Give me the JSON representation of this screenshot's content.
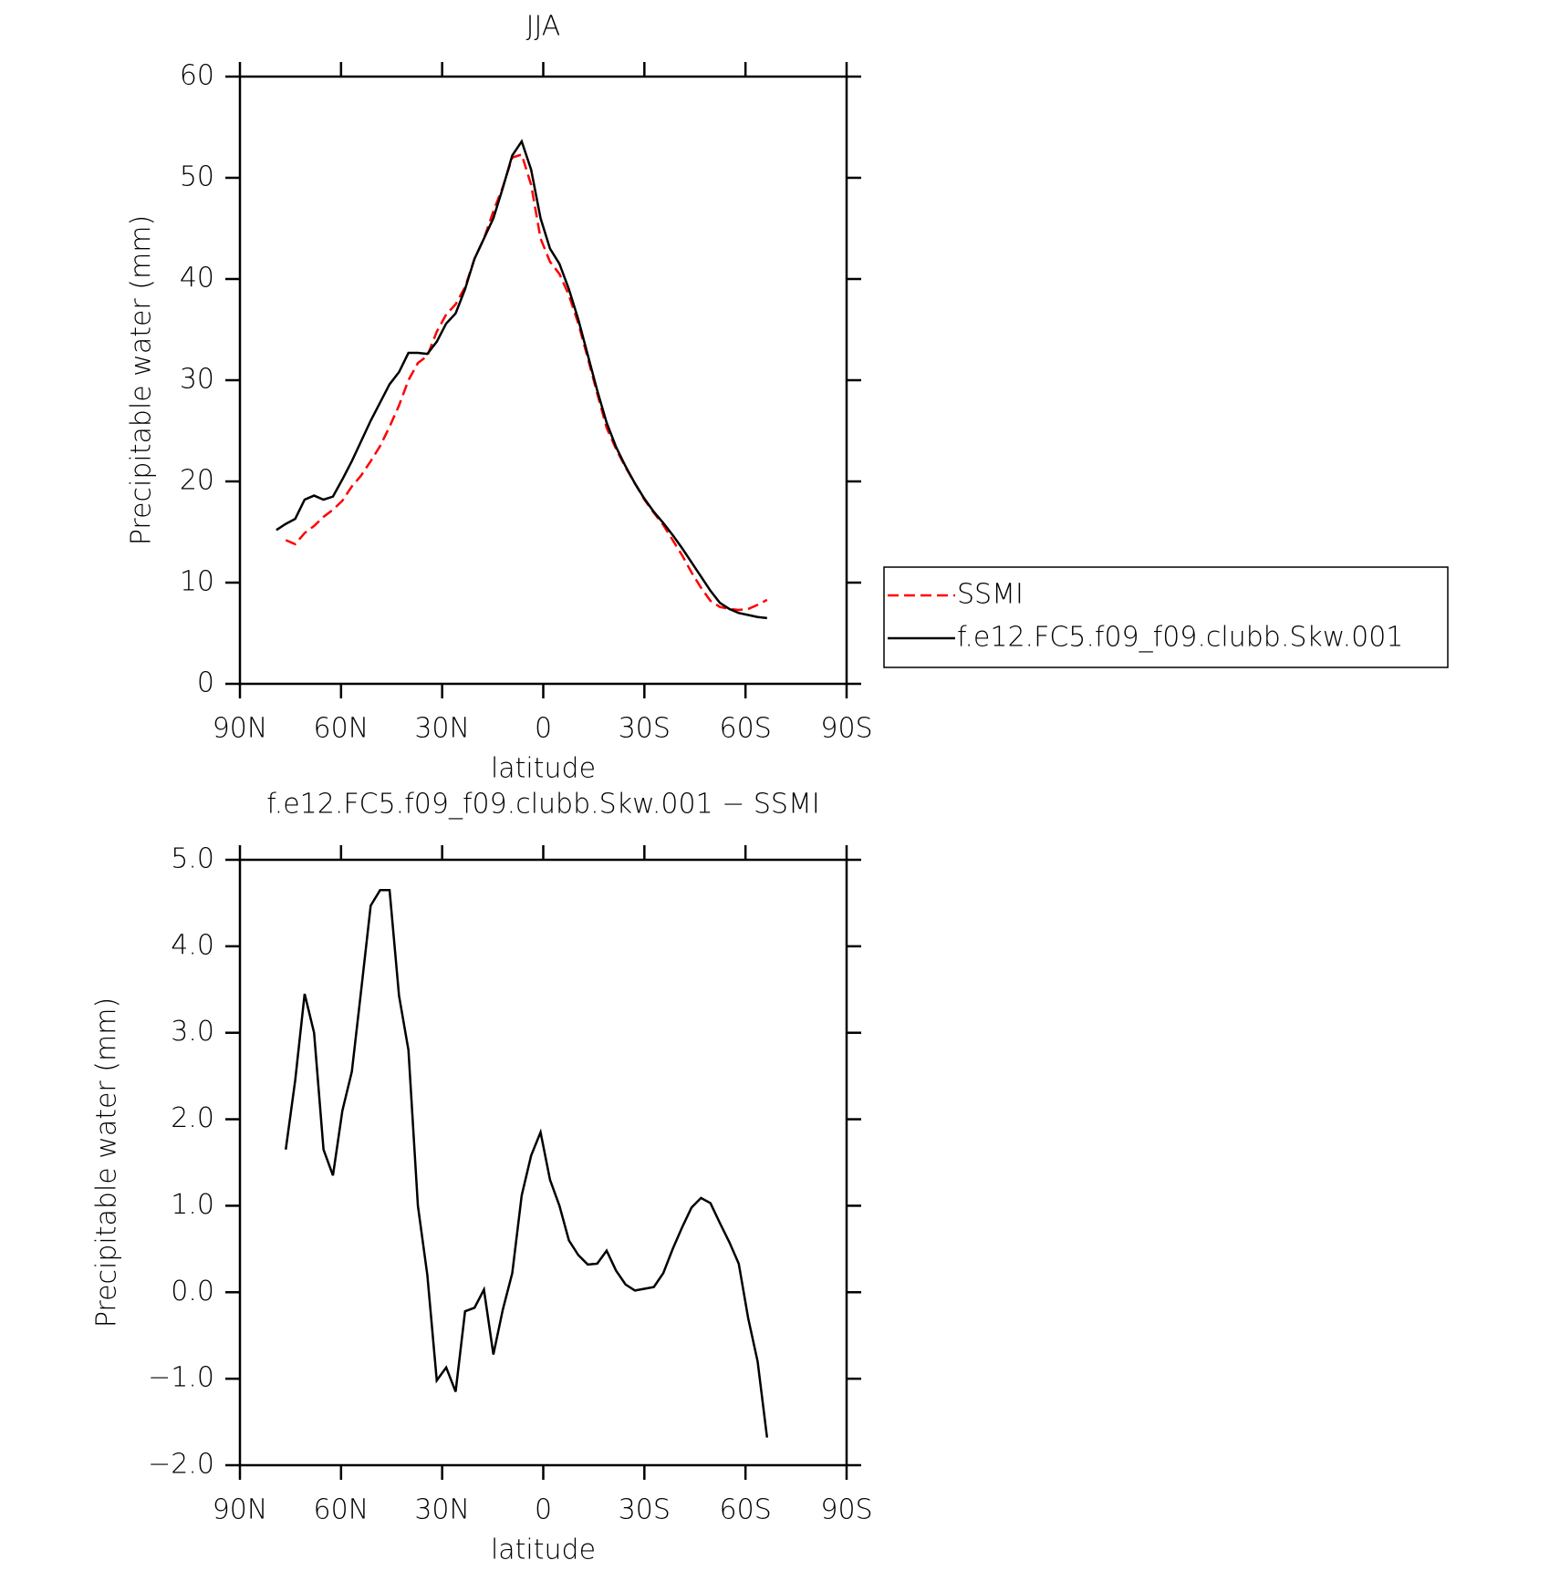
{
  "chart_data": [
    {
      "type": "line",
      "title": "JJA",
      "xlabel": "latitude",
      "ylabel": "Precipitable water (mm)",
      "x": [
        79.2,
        76.4,
        73.6,
        70.8,
        68.0,
        65.2,
        62.4,
        59.6,
        56.8,
        54.0,
        51.2,
        48.4,
        45.6,
        42.8,
        40.0,
        37.2,
        34.4,
        31.6,
        28.8,
        26.0,
        23.2,
        20.4,
        17.6,
        14.8,
        12.0,
        9.2,
        6.4,
        3.6,
        0.8,
        -2.0,
        -4.8,
        -7.6,
        -10.4,
        -13.2,
        -16.0,
        -18.8,
        -21.6,
        -24.4,
        -27.2,
        -30.0,
        -32.8,
        -35.6,
        -38.4,
        -41.2,
        -44.0,
        -46.8,
        -49.6,
        -52.4,
        -55.2,
        -58.0,
        -60.8,
        -63.6,
        -66.4
      ],
      "series": [
        {
          "name": "SSMI",
          "color": "#ff0000",
          "line_style": "dashed",
          "values": [
            null,
            14.2,
            13.8,
            14.9,
            15.6,
            16.5,
            17.2,
            18.1,
            19.5,
            20.6,
            22.0,
            23.5,
            25.4,
            27.5,
            30.0,
            31.7,
            32.4,
            34.8,
            36.5,
            37.5,
            39.2,
            42.0,
            44.0,
            46.7,
            49.1,
            52.0,
            52.3,
            49.3,
            44.0,
            41.7,
            40.5,
            38.4,
            35.6,
            32.2,
            28.7,
            25.3,
            23.2,
            21.4,
            19.8,
            18.2,
            16.9,
            15.7,
            14.2,
            12.7,
            11.0,
            9.5,
            8.2,
            7.6,
            7.4,
            7.3,
            7.4,
            7.8,
            8.3
          ]
        },
        {
          "name": "f.e12.FC5.f09_f09.clubb.Skw.001",
          "color": "#000000",
          "line_style": "solid",
          "values": [
            15.2,
            15.8,
            16.3,
            18.2,
            18.6,
            18.2,
            18.5,
            20.2,
            22.0,
            24.0,
            26.0,
            27.8,
            29.6,
            30.8,
            32.7,
            32.7,
            32.6,
            33.8,
            35.6,
            36.6,
            39.0,
            42.0,
            44.0,
            46.0,
            49.0,
            52.2,
            53.6,
            50.8,
            46.0,
            43.0,
            41.5,
            39.0,
            36.0,
            32.5,
            29.0,
            25.8,
            23.4,
            21.5,
            19.8,
            18.3,
            17.0,
            15.9,
            14.7,
            13.4,
            12.0,
            10.6,
            9.2,
            8.0,
            7.4,
            7.0,
            6.8,
            6.6,
            6.5
          ]
        }
      ],
      "xlim": [
        90,
        -90
      ],
      "xticks": [
        {
          "value": 90,
          "label": "90N"
        },
        {
          "value": 60,
          "label": "60N"
        },
        {
          "value": 30,
          "label": "30N"
        },
        0,
        {
          "value": -30,
          "label": "30S"
        },
        {
          "value": -60,
          "label": "60S"
        },
        {
          "value": -90,
          "label": "90S"
        }
      ],
      "ylim": [
        0,
        60
      ],
      "yticks": [
        0,
        10,
        20,
        30,
        40,
        50,
        60
      ],
      "legend": "outside-right"
    },
    {
      "type": "line",
      "title": "f.e12.FC5.f09_f09.clubb.Skw.001 − SSMI",
      "xlabel": "latitude",
      "ylabel": "Precipitable water (mm)",
      "x": [
        76.4,
        73.6,
        70.8,
        68.0,
        65.2,
        62.4,
        59.6,
        56.8,
        54.0,
        51.2,
        48.4,
        45.6,
        42.8,
        40.0,
        37.2,
        34.4,
        31.6,
        28.8,
        26.0,
        23.2,
        20.4,
        17.6,
        14.8,
        12.0,
        9.2,
        6.4,
        3.6,
        0.8,
        -2.0,
        -4.8,
        -7.6,
        -10.4,
        -13.2,
        -16.0,
        -18.8,
        -21.6,
        -24.4,
        -27.2,
        -30.0,
        -32.8,
        -35.6,
        -38.4,
        -41.2,
        -44.0,
        -46.8,
        -49.6,
        -52.4,
        -55.2,
        -58.0,
        -60.8,
        -63.6,
        -66.4
      ],
      "series": [
        {
          "color": "#000000",
          "line_style": "solid",
          "values": [
            1.65,
            2.45,
            3.45,
            3.0,
            1.65,
            1.35,
            2.1,
            2.55,
            3.5,
            4.47,
            4.65,
            4.65,
            3.43,
            2.8,
            1.0,
            0.2,
            -1.02,
            -0.87,
            -1.15,
            -0.22,
            -0.18,
            0.03,
            -0.72,
            -0.2,
            0.22,
            1.12,
            1.58,
            1.85,
            1.3,
            1.0,
            0.6,
            0.43,
            0.32,
            0.33,
            0.48,
            0.25,
            0.09,
            0.02,
            0.04,
            0.06,
            0.22,
            0.5,
            0.75,
            0.98,
            1.09,
            1.03,
            0.8,
            0.58,
            0.33,
            -0.3,
            -0.8,
            -1.68
          ]
        }
      ],
      "xlim": [
        90,
        -90
      ],
      "xticks": [
        {
          "value": 90,
          "label": "90N"
        },
        {
          "value": 60,
          "label": "60N"
        },
        {
          "value": 30,
          "label": "30N"
        },
        0,
        {
          "value": -30,
          "label": "30S"
        },
        {
          "value": -60,
          "label": "60S"
        },
        {
          "value": -90,
          "label": "90S"
        }
      ],
      "ylim": [
        -2,
        5
      ],
      "yticks": [
        {
          "value": -2,
          "label": "−2.0"
        },
        {
          "value": -1,
          "label": "−1.0"
        },
        {
          "value": 0,
          "label": "0.0"
        },
        {
          "value": 1,
          "label": "1.0"
        },
        {
          "value": 2,
          "label": "2.0"
        },
        {
          "value": 3,
          "label": "3.0"
        },
        {
          "value": 4,
          "label": "4.0"
        },
        {
          "value": 5,
          "label": "5.0"
        }
      ]
    }
  ]
}
